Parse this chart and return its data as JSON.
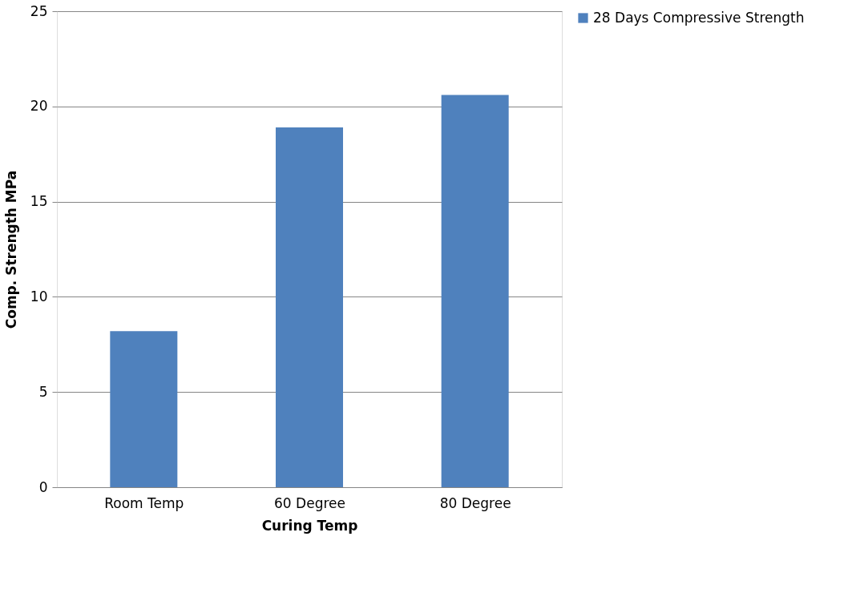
{
  "chart_data": {
    "type": "bar",
    "xlabel": "Curing Temp",
    "ylabel": "Comp. Strength MPa",
    "categories": [
      "Room Temp",
      "60 Degree",
      "80 Degree"
    ],
    "series": [
      {
        "name": "28 Days Compressive Strength",
        "color": "#4f81bd",
        "values": [
          8.2,
          18.9,
          20.6
        ]
      }
    ],
    "ylim": [
      0,
      25
    ],
    "yticks": [
      0,
      5,
      10,
      15,
      20,
      25
    ],
    "grid": "y",
    "legend": "right"
  }
}
